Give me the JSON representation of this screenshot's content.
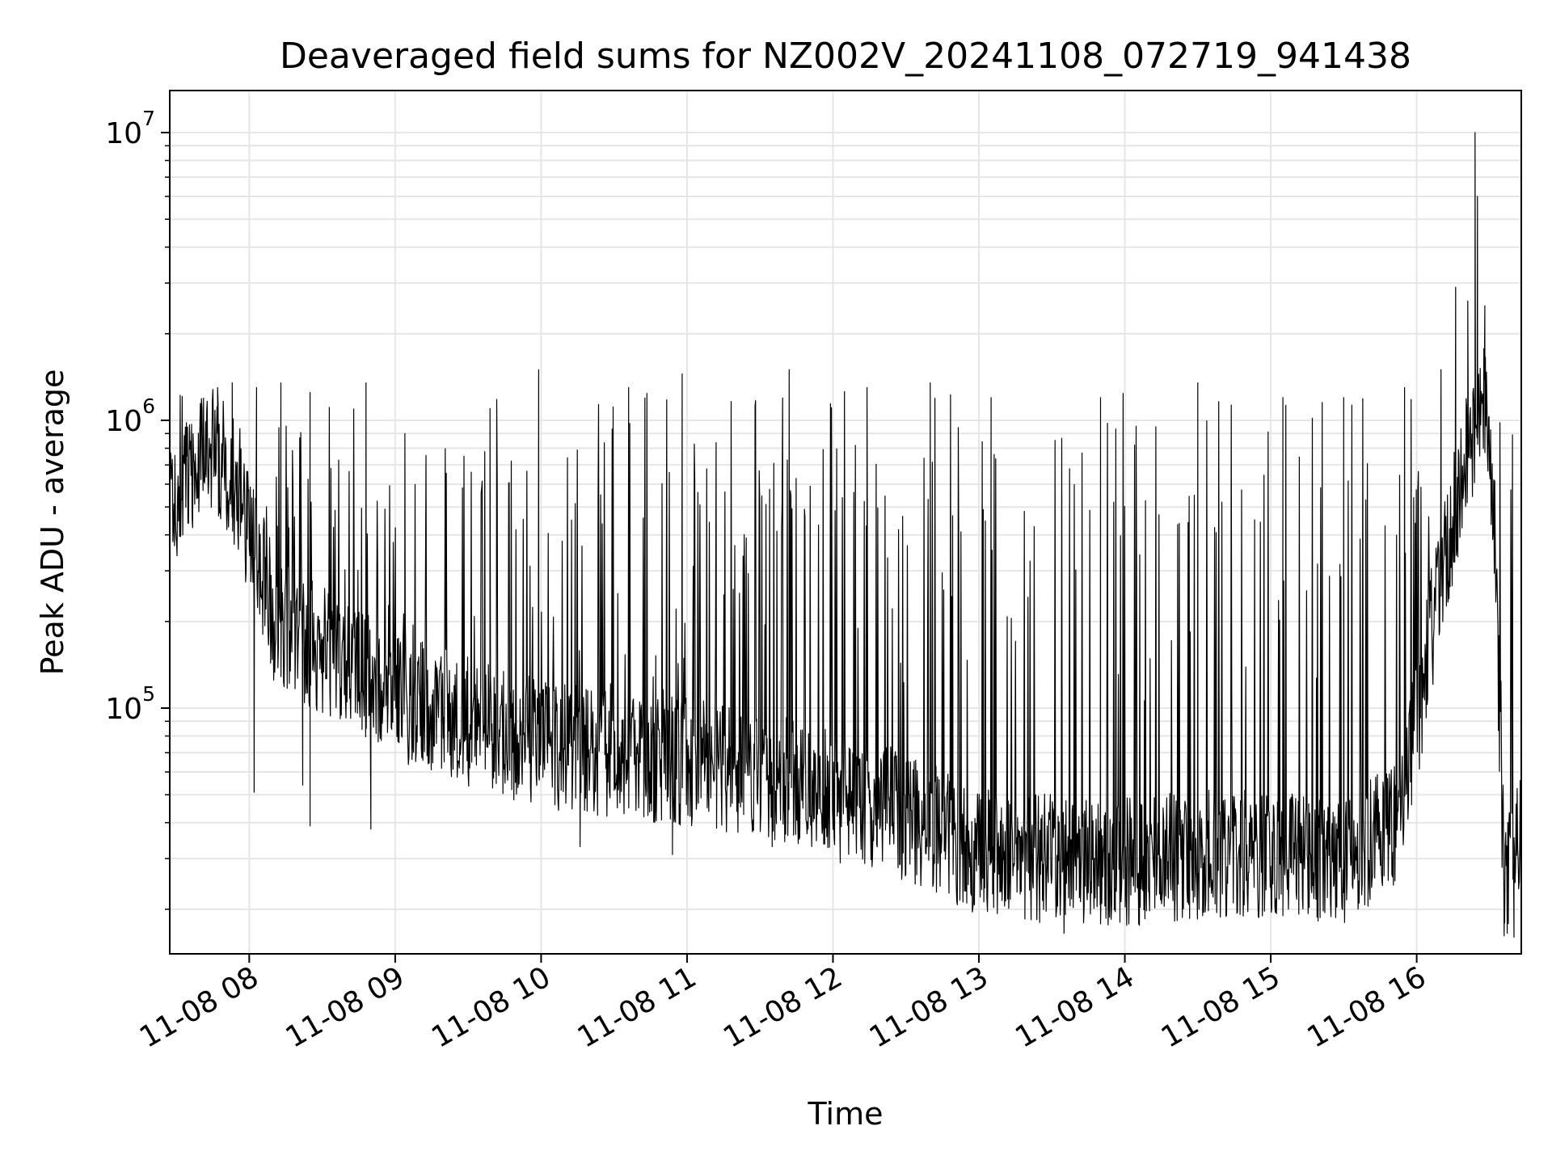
{
  "chart_data": {
    "type": "line",
    "title": "Deaveraged field sums for NZ002V_20241108_072719_941438",
    "xlabel": "Time",
    "ylabel": "Peak ADU - average",
    "yscale": "log",
    "ylim": [
      14000,
      14000000
    ],
    "xlim": [
      "2024-11-08 07:27:19",
      "2024-11-08 16:43:00"
    ],
    "grid": true,
    "legend": "none",
    "line_color": "#000000",
    "x_ticks": [
      {
        "x": "2024-11-08 08:00",
        "label": "11-08 08"
      },
      {
        "x": "2024-11-08 09:00",
        "label": "11-08 09"
      },
      {
        "x": "2024-11-08 10:00",
        "label": "11-08 10"
      },
      {
        "x": "2024-11-08 11:00",
        "label": "11-08 11"
      },
      {
        "x": "2024-11-08 12:00",
        "label": "11-08 12"
      },
      {
        "x": "2024-11-08 13:00",
        "label": "11-08 13"
      },
      {
        "x": "2024-11-08 14:00",
        "label": "11-08 14"
      },
      {
        "x": "2024-11-08 15:00",
        "label": "11-08 15"
      },
      {
        "x": "2024-11-08 16:00",
        "label": "11-08 16"
      }
    ],
    "y_ticks": [
      {
        "value": 100000,
        "base": "10",
        "exp": "5"
      },
      {
        "value": 1000000,
        "base": "10",
        "exp": "6"
      },
      {
        "value": 10000000,
        "base": "10",
        "exp": "7"
      }
    ],
    "series": [
      {
        "points": [
          [
            "2024-11-08 07:27",
            500000
          ],
          [
            "2024-11-08 07:35",
            650000
          ],
          [
            "2024-11-08 07:45",
            780000
          ],
          [
            "2024-11-08 07:55",
            600000
          ],
          [
            "2024-11-08 08:00",
            400000
          ],
          [
            "2024-11-08 08:05",
            300000
          ],
          [
            "2024-11-08 08:10",
            200000
          ],
          [
            "2024-11-08 08:20",
            180000
          ],
          [
            "2024-11-08 08:40",
            140000
          ],
          [
            "2024-11-08 09:00",
            110000
          ],
          [
            "2024-11-08 09:30",
            90000
          ],
          [
            "2024-11-08 10:00",
            75000
          ],
          [
            "2024-11-08 10:30",
            70000
          ],
          [
            "2024-11-08 11:00",
            65000
          ],
          [
            "2024-11-08 11:30",
            58000
          ],
          [
            "2024-11-08 12:00",
            52000
          ],
          [
            "2024-11-08 12:30",
            42000
          ],
          [
            "2024-11-08 13:00",
            32000
          ],
          [
            "2024-11-08 13:30",
            30000
          ],
          [
            "2024-11-08 14:00",
            29000
          ],
          [
            "2024-11-08 14:30",
            31000
          ],
          [
            "2024-11-08 15:00",
            31000
          ],
          [
            "2024-11-08 15:30",
            30000
          ],
          [
            "2024-11-08 15:50",
            38000
          ],
          [
            "2024-11-08 16:00",
            90000
          ],
          [
            "2024-11-08 16:10",
            300000
          ],
          [
            "2024-11-08 16:20",
            700000
          ],
          [
            "2024-11-08 16:28",
            1200000
          ],
          [
            "2024-11-08 16:32",
            400000
          ],
          [
            "2024-11-08 16:35",
            50000
          ],
          [
            "2024-11-08 16:36",
            22000
          ],
          [
            "2024-11-08 16:40",
            30000
          ],
          [
            "2024-11-08 16:43",
            38000
          ]
        ]
      }
    ],
    "spikes": [
      [
        "2024-11-08 07:47",
        1300000
      ],
      [
        "2024-11-08 07:53",
        1350000
      ],
      [
        "2024-11-08 08:03",
        1300000
      ],
      [
        "2024-11-08 08:13",
        1350000
      ],
      [
        "2024-11-08 08:25",
        1250000
      ],
      [
        "2024-11-08 08:48",
        1350000
      ],
      [
        "2024-11-08 09:04",
        900000
      ],
      [
        "2024-11-08 09:39",
        1100000
      ],
      [
        "2024-11-08 09:59",
        1500000
      ],
      [
        "2024-11-08 10:36",
        1300000
      ],
      [
        "2024-11-08 10:58",
        1450000
      ],
      [
        "2024-11-08 11:42",
        1500000
      ],
      [
        "2024-11-08 12:14",
        1300000
      ],
      [
        "2024-11-08 12:40",
        1350000
      ],
      [
        "2024-11-08 13:05",
        1200000
      ],
      [
        "2024-11-08 13:50",
        1200000
      ],
      [
        "2024-11-08 14:30",
        1350000
      ],
      [
        "2024-11-08 15:05",
        1200000
      ],
      [
        "2024-11-08 15:30",
        1200000
      ],
      [
        "2024-11-08 15:55",
        1300000
      ],
      [
        "2024-11-08 16:10",
        1500000
      ],
      [
        "2024-11-08 16:16",
        2900000
      ],
      [
        "2024-11-08 16:21",
        2600000
      ],
      [
        "2024-11-08 16:24",
        10000000
      ],
      [
        "2024-11-08 16:25",
        6000000
      ],
      [
        "2024-11-08 16:28",
        2500000
      ]
    ],
    "dips": [
      [
        "2024-11-08 08:02",
        51000
      ],
      [
        "2024-11-08 08:22",
        54000
      ],
      [
        "2024-11-08 08:25",
        39000
      ],
      [
        "2024-11-08 08:50",
        38000
      ],
      [
        "2024-11-08 10:16",
        33000
      ],
      [
        "2024-11-08 10:54",
        31000
      ],
      [
        "2024-11-08 11:35",
        33000
      ],
      [
        "2024-11-08 12:03",
        29000
      ],
      [
        "2024-11-08 12:55",
        21000
      ],
      [
        "2024-11-08 13:25",
        18000
      ],
      [
        "2024-11-08 13:35",
        16500
      ],
      [
        "2024-11-08 13:50",
        17800
      ],
      [
        "2024-11-08 14:06",
        17600
      ],
      [
        "2024-11-08 14:32",
        19000
      ],
      [
        "2024-11-08 15:05",
        19000
      ],
      [
        "2024-11-08 15:40",
        20500
      ],
      [
        "2024-11-08 16:36",
        18000
      ],
      [
        "2024-11-08 16:40",
        16000
      ]
    ]
  }
}
